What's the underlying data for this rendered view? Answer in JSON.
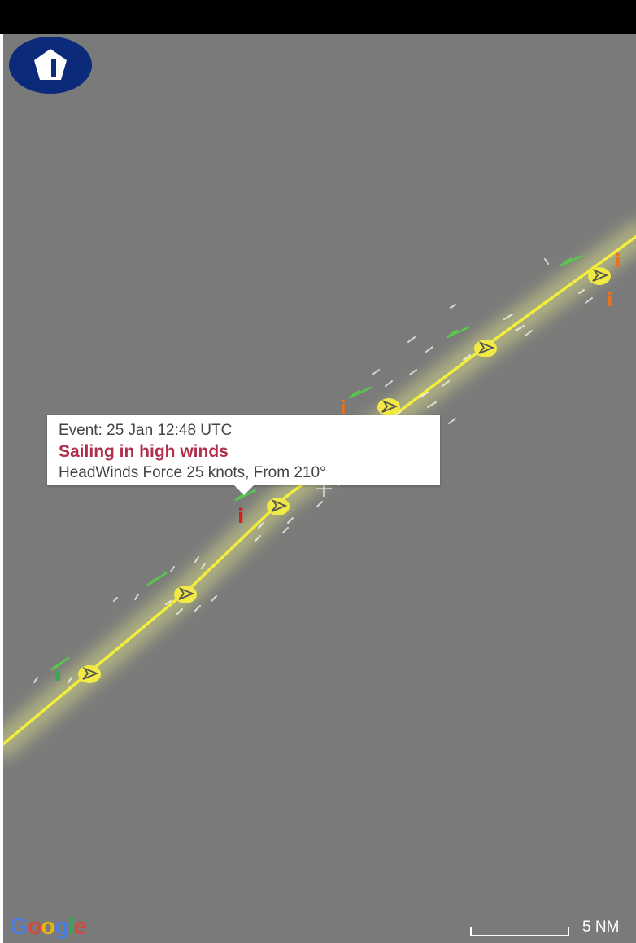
{
  "popup": {
    "event": "Event: 25 Jan 12:48 UTC",
    "title": "Sailing in high winds",
    "detail": "HeadWinds Force 25 knots, From 210°"
  },
  "attribution": {
    "letters": [
      "G",
      "o",
      "o",
      "g",
      "l",
      "e"
    ],
    "colors": [
      "#4a7de0",
      "#d9453a",
      "#f0b90a",
      "#4a7de0",
      "#3aa856",
      "#d9453a"
    ]
  },
  "scale": {
    "label": "5 NM"
  },
  "style": {
    "track_color": "#f3ee3a",
    "track_glow": "#e6ee8a",
    "marker_fill": "#f2ea44",
    "wind_barb_color": "#57c84a",
    "info_red": "#d81b1b",
    "info_orange": "#e8731c",
    "logo_color": "#0b2a7a",
    "map_background": "#7a7a7a"
  },
  "icons": {
    "logo": "pentagon-logo-icon",
    "boat": "boat-arrow-icon",
    "wind": "wind-barb-icon",
    "info": "info-marker-icon",
    "crosshair": "crosshair-icon"
  }
}
